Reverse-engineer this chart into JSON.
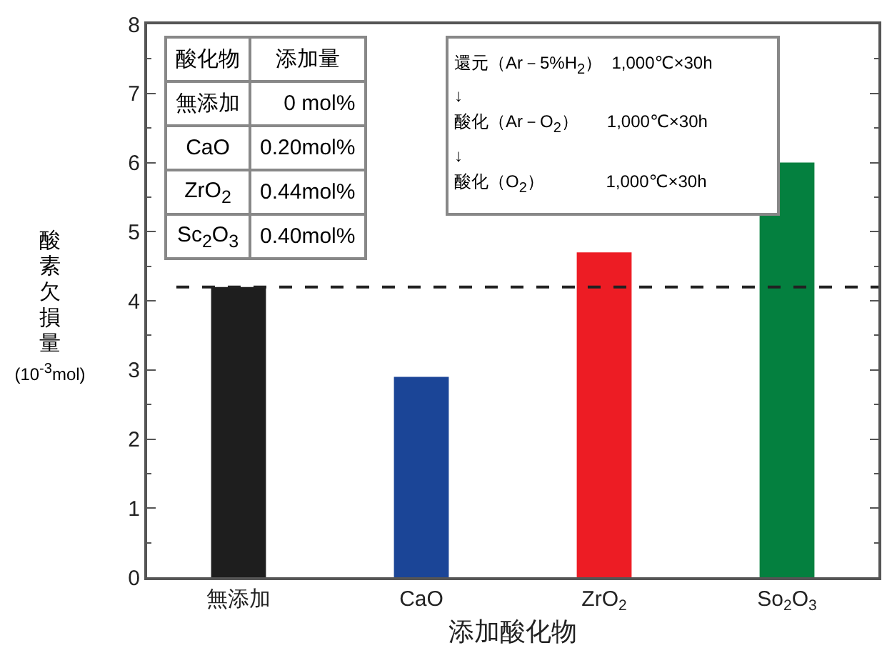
{
  "chart_data": {
    "type": "bar",
    "xlabel": "添加酸化物",
    "ylabel": "酸素欠損量\n(10$^{-3}$mol)",
    "categories": [
      "無添加",
      "CaO",
      "ZrO$_{2}$",
      "So$_{2}$O$_{3}$"
    ],
    "values": [
      4.2,
      2.9,
      4.7,
      6.0
    ],
    "colors": [
      "#1e1e1e",
      "#1b4597",
      "#ed1c24",
      "#04803f"
    ],
    "ylim": [
      0,
      8
    ],
    "yticks": [
      0,
      1,
      2,
      3,
      4,
      5,
      6,
      7,
      8
    ],
    "grid": false,
    "ref_lines": [
      {
        "axis": "y",
        "value": 4.2,
        "line_style": "dashed",
        "color": "#222222"
      }
    ],
    "annotations": [
      "酸化物",
      "添加量",
      "無添加",
      "0 mol%",
      "CaO",
      "0.20mol%",
      "ZrO$_{2}$",
      "0.44mol%",
      "Sc$_{2}$O$_{3}$",
      "0.40mol%",
      "還元（Ar－5%H$_{2}$）  1,000℃×30h",
      "↓",
      "酸化（Ar－O$_{2}$）      1,000℃×30h",
      "↓",
      "酸化（O$_{2}$）             1,000℃×30h"
    ]
  }
}
